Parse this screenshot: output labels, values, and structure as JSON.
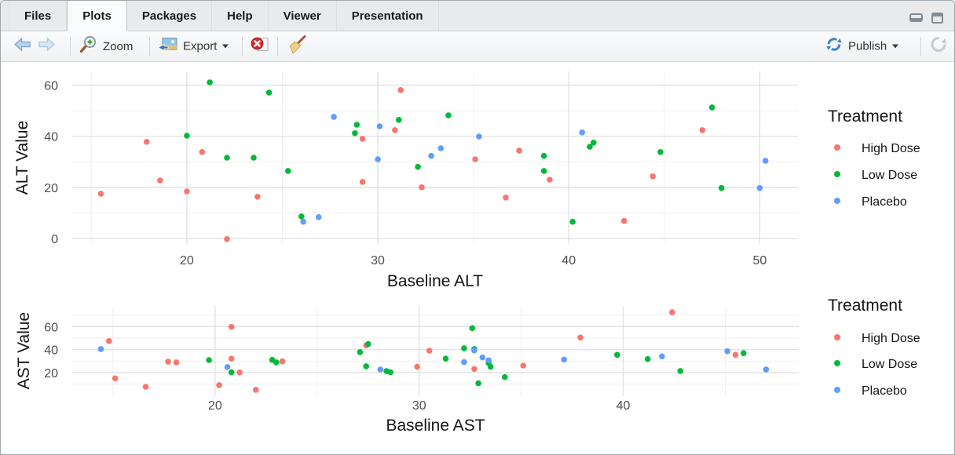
{
  "tabs": {
    "items": [
      {
        "label": "Files",
        "active": false
      },
      {
        "label": "Plots",
        "active": true
      },
      {
        "label": "Packages",
        "active": false
      },
      {
        "label": "Help",
        "active": false
      },
      {
        "label": "Viewer",
        "active": false
      },
      {
        "label": "Presentation",
        "active": false
      }
    ]
  },
  "window_controls": {
    "minimize_icon": "minimize",
    "maximize_icon": "maximize"
  },
  "toolbar": {
    "back_icon": "arrow-left",
    "forward_icon": "arrow-right",
    "zoom_label": "Zoom",
    "zoom_icon": "magnifier-plus",
    "export_label": "Export",
    "export_icon": "image-export",
    "remove_plot_icon": "red-circle-x",
    "clear_plots_icon": "broom",
    "publish_label": "Publish",
    "publish_icon": "publish-sync",
    "refresh_icon": "circular-arrow"
  },
  "palette": {
    "high_dose": "#F8766D",
    "low_dose": "#00BA38",
    "placebo": "#619CFF",
    "grid_major": "#e2e2e2",
    "grid_minor": "#efefef",
    "tick_text": "#4d4d4d"
  },
  "chart_data": [
    {
      "type": "scatter",
      "name": "alt-scatter",
      "title": "",
      "xlabel": "Baseline ALT",
      "ylabel": "ALT Value",
      "xlim": [
        14.0,
        52.0
      ],
      "ylim": [
        -2.2,
        65.4
      ],
      "x_major": [
        20,
        30,
        40,
        50
      ],
      "x_minor": [
        15,
        25,
        35,
        45
      ],
      "y_major": [
        0,
        20,
        40,
        60
      ],
      "y_minor": [
        10,
        30,
        50
      ],
      "grid": true,
      "legend": {
        "title": "Treatment",
        "position": "right"
      },
      "series": [
        {
          "name": "High Dose",
          "color": "#F8766D",
          "points": [
            [
              15.5,
              17.5
            ],
            [
              17.9,
              37.8
            ],
            [
              18.6,
              22.7
            ],
            [
              20.0,
              18.4
            ],
            [
              20.8,
              33.8
            ],
            [
              22.1,
              -0.3
            ],
            [
              23.7,
              16.3
            ],
            [
              29.2,
              39.0
            ],
            [
              29.2,
              22.1
            ],
            [
              30.9,
              42.4
            ],
            [
              31.2,
              58.1
            ],
            [
              32.3,
              20.0
            ],
            [
              35.1,
              31.0
            ],
            [
              36.7,
              16.0
            ],
            [
              37.4,
              34.4
            ],
            [
              39.0,
              23.0
            ],
            [
              42.9,
              6.8
            ],
            [
              44.4,
              24.3
            ],
            [
              47.0,
              42.4
            ]
          ]
        },
        {
          "name": "Low Dose",
          "color": "#00BA38",
          "points": [
            [
              20.0,
              40.2
            ],
            [
              21.2,
              61.1
            ],
            [
              22.1,
              31.6
            ],
            [
              23.5,
              31.6
            ],
            [
              24.3,
              57.1
            ],
            [
              25.3,
              26.4
            ],
            [
              26.0,
              8.6
            ],
            [
              28.8,
              41.2
            ],
            [
              28.9,
              44.5
            ],
            [
              31.1,
              46.4
            ],
            [
              32.1,
              28.0
            ],
            [
              33.7,
              48.2
            ],
            [
              38.7,
              32.3
            ],
            [
              38.7,
              26.4
            ],
            [
              40.2,
              6.5
            ],
            [
              41.1,
              35.9
            ],
            [
              41.3,
              37.5
            ],
            [
              44.8,
              33.8
            ],
            [
              47.5,
              51.3
            ],
            [
              48.0,
              19.7
            ]
          ]
        },
        {
          "name": "Placebo",
          "color": "#619CFF",
          "points": [
            [
              26.1,
              6.5
            ],
            [
              26.9,
              8.3
            ],
            [
              27.7,
              47.6
            ],
            [
              30.0,
              31.0
            ],
            [
              30.1,
              43.9
            ],
            [
              32.8,
              32.3
            ],
            [
              33.3,
              35.3
            ],
            [
              35.3,
              39.9
            ],
            [
              40.7,
              41.5
            ],
            [
              50.0,
              19.7
            ],
            [
              50.3,
              30.4
            ]
          ]
        }
      ]
    },
    {
      "type": "scatter",
      "name": "ast-scatter",
      "title": "",
      "xlabel": "Baseline AST",
      "ylabel": "AST Value",
      "xlim": [
        13.0,
        48.6
      ],
      "ylim": [
        -0.5,
        78.0
      ],
      "x_major": [
        20,
        30,
        40
      ],
      "x_minor": [
        15,
        25,
        35,
        45
      ],
      "y_major": [
        20,
        40,
        60
      ],
      "y_minor": [
        10,
        30,
        50,
        70
      ],
      "grid": true,
      "legend": {
        "title": "Treatment",
        "position": "right"
      },
      "series": [
        {
          "name": "High Dose",
          "color": "#F8766D",
          "points": [
            [
              14.8,
              47.5
            ],
            [
              15.1,
              15.0
            ],
            [
              16.6,
              7.7
            ],
            [
              17.7,
              29.5
            ],
            [
              18.1,
              28.9
            ],
            [
              20.2,
              9.1
            ],
            [
              20.8,
              59.8
            ],
            [
              20.8,
              32.1
            ],
            [
              21.2,
              20.2
            ],
            [
              22.0,
              5.0
            ],
            [
              23.3,
              29.8
            ],
            [
              27.4,
              43.7
            ],
            [
              29.9,
              25.0
            ],
            [
              30.5,
              39.1
            ],
            [
              32.7,
              23.2
            ],
            [
              35.1,
              26.1
            ],
            [
              37.9,
              50.5
            ],
            [
              42.4,
              72.5
            ],
            [
              45.5,
              35.5
            ]
          ]
        },
        {
          "name": "Low Dose",
          "color": "#00BA38",
          "points": [
            [
              19.7,
              30.9
            ],
            [
              20.8,
              20.2
            ],
            [
              22.8,
              31.1
            ],
            [
              23.0,
              28.9
            ],
            [
              27.1,
              37.8
            ],
            [
              27.4,
              25.5
            ],
            [
              27.5,
              44.8
            ],
            [
              28.4,
              21.3
            ],
            [
              28.6,
              20.3
            ],
            [
              31.3,
              32.1
            ],
            [
              32.2,
              41.2
            ],
            [
              32.6,
              58.7
            ],
            [
              32.7,
              40.5
            ],
            [
              32.9,
              10.7
            ],
            [
              33.4,
              28.4
            ],
            [
              33.5,
              25.0
            ],
            [
              34.2,
              16.1
            ],
            [
              39.7,
              35.5
            ],
            [
              41.2,
              31.8
            ],
            [
              42.8,
              21.4
            ],
            [
              45.9,
              36.9
            ]
          ]
        },
        {
          "name": "Placebo",
          "color": "#619CFF",
          "points": [
            [
              14.4,
              40.5
            ],
            [
              20.6,
              24.8
            ],
            [
              28.1,
              22.7
            ],
            [
              32.2,
              29.1
            ],
            [
              32.7,
              39.3
            ],
            [
              33.1,
              33.2
            ],
            [
              33.4,
              30.7
            ],
            [
              37.1,
              31.4
            ],
            [
              41.9,
              34.1
            ],
            [
              45.1,
              38.6
            ],
            [
              47.0,
              22.8
            ]
          ]
        }
      ]
    }
  ]
}
